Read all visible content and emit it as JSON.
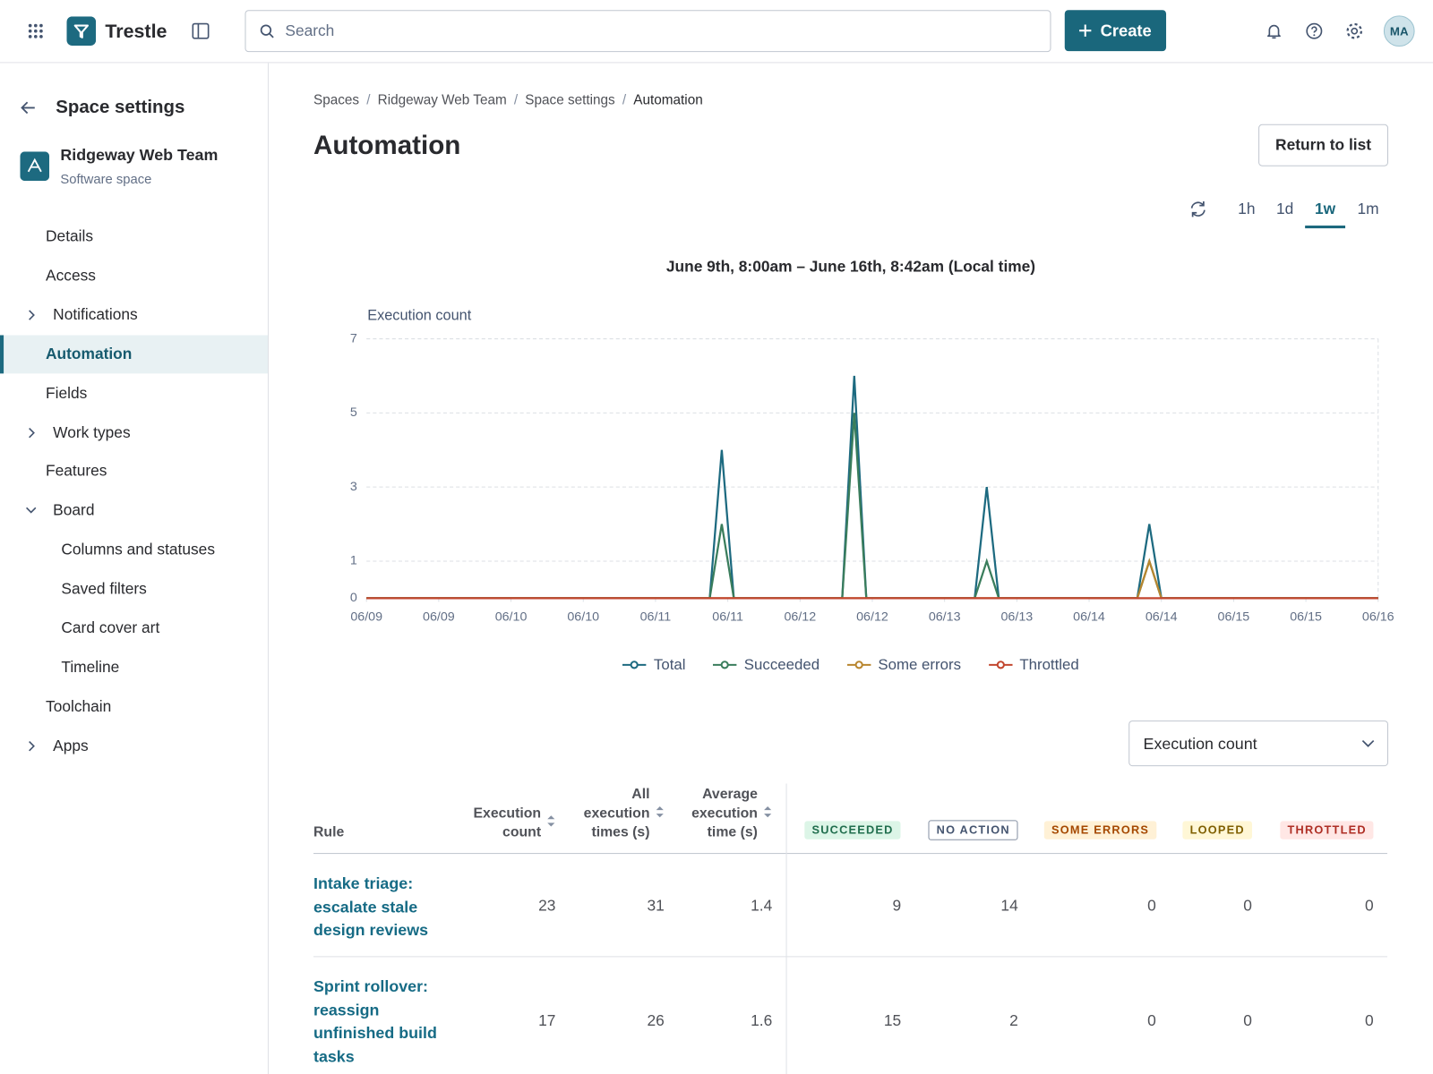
{
  "header": {
    "app_name": "Trestle",
    "search_placeholder": "Search",
    "create_button": "Create",
    "avatar": "MA"
  },
  "sidebar": {
    "title": "Space settings",
    "space_name": "Ridgeway Web Team",
    "space_type": "Software space",
    "nav": [
      {
        "label": "Details"
      },
      {
        "label": "Access"
      },
      {
        "label": "Notifications",
        "chevron": "right"
      },
      {
        "label": "Automation",
        "active": true
      },
      {
        "label": "Fields"
      },
      {
        "label": "Work types",
        "chevron": "right"
      },
      {
        "label": "Features"
      },
      {
        "label": "Board",
        "chevron": "down"
      },
      {
        "label": "Columns and statuses",
        "indent": 1
      },
      {
        "label": "Saved filters",
        "indent": 1
      },
      {
        "label": "Card cover art",
        "indent": 1
      },
      {
        "label": "Timeline",
        "indent": 1
      },
      {
        "label": "Toolchain"
      },
      {
        "label": "Apps",
        "chevron": "right"
      }
    ]
  },
  "breadcrumbs": [
    "Spaces",
    "Ridgeway Web Team",
    "Space settings",
    "Automation"
  ],
  "page_title": "Automation",
  "return_button": "Return to list",
  "time_ranges": [
    "1h",
    "1d",
    "1w",
    "1m"
  ],
  "selected_time_range": "1w",
  "chart_data": {
    "type": "line",
    "subtitle": "June 9th, 8:00am – June 16th, 8:42am (Local time)",
    "y_label": "Execution count",
    "x": [
      0,
      57,
      59,
      61,
      79,
      81,
      83,
      101,
      103,
      105,
      128,
      130,
      132,
      168
    ],
    "xlim": [
      0,
      168
    ],
    "xticks": [
      {
        "value": 0,
        "label": "06/09"
      },
      {
        "value": 12,
        "label": "06/09"
      },
      {
        "value": 24,
        "label": "06/10"
      },
      {
        "value": 36,
        "label": "06/10"
      },
      {
        "value": 48,
        "label": "06/11"
      },
      {
        "value": 60,
        "label": "06/11"
      },
      {
        "value": 72,
        "label": "06/12"
      },
      {
        "value": 84,
        "label": "06/12"
      },
      {
        "value": 96,
        "label": "06/13"
      },
      {
        "value": 108,
        "label": "06/13"
      },
      {
        "value": 120,
        "label": "06/14"
      },
      {
        "value": 132,
        "label": "06/14"
      },
      {
        "value": 144,
        "label": "06/15"
      },
      {
        "value": 156,
        "label": "06/15"
      },
      {
        "value": 168,
        "label": "06/16"
      }
    ],
    "ylim": [
      0,
      7
    ],
    "yticks": [
      0,
      1,
      3,
      5,
      7
    ],
    "grid": true,
    "series": [
      {
        "name": "Total",
        "color": "#1d6a80",
        "values": [
          0,
          0,
          4,
          0,
          0,
          6,
          0,
          0,
          3,
          0,
          0,
          2,
          0,
          0
        ]
      },
      {
        "name": "Succeeded",
        "color": "#3a7d5c",
        "values": [
          0,
          0,
          2,
          0,
          0,
          5,
          0,
          0,
          1,
          0,
          0,
          1,
          0,
          0
        ]
      },
      {
        "name": "Some errors",
        "color": "#b8862f",
        "values": [
          0,
          0,
          0,
          0,
          0,
          0,
          0,
          0,
          0,
          0,
          0,
          1,
          0,
          0
        ]
      },
      {
        "name": "Throttled",
        "color": "#c2462f",
        "values": [
          0,
          0,
          0,
          0,
          0,
          0,
          0,
          0,
          0,
          0,
          0,
          0,
          0,
          0
        ]
      }
    ]
  },
  "metric_select": "Execution count",
  "table": {
    "columns": [
      {
        "label": "Rule"
      },
      {
        "label": "Execution count",
        "sortable": true
      },
      {
        "label": "All execution times (s)",
        "sortable": true
      },
      {
        "label": "Average execution time (s)",
        "sortable": true
      },
      {
        "label": "SUCCEEDED",
        "badge_bg": "#dcf5e7",
        "badge_fg": "#216e4e"
      },
      {
        "label": "NO ACTION",
        "badge_bg": "#ffffff",
        "badge_fg": "#44546f",
        "badge_border": "#8590a2"
      },
      {
        "label": "SOME ERRORS",
        "badge_bg": "#fff1d6",
        "badge_fg": "#a54800"
      },
      {
        "label": "LOOPED",
        "badge_bg": "#fff7d6",
        "badge_fg": "#7f5f01"
      },
      {
        "label": "THROTTLED",
        "badge_bg": "#ffe7e5",
        "badge_fg": "#ae2e24"
      }
    ],
    "rows": [
      [
        "Intake triage: escalate stale design reviews",
        23,
        31,
        1.4,
        9,
        14,
        0,
        0,
        0
      ],
      [
        "Sprint rollover: reassign unfinished build tasks",
        17,
        26,
        1.6,
        15,
        2,
        0,
        0,
        0
      ]
    ]
  }
}
